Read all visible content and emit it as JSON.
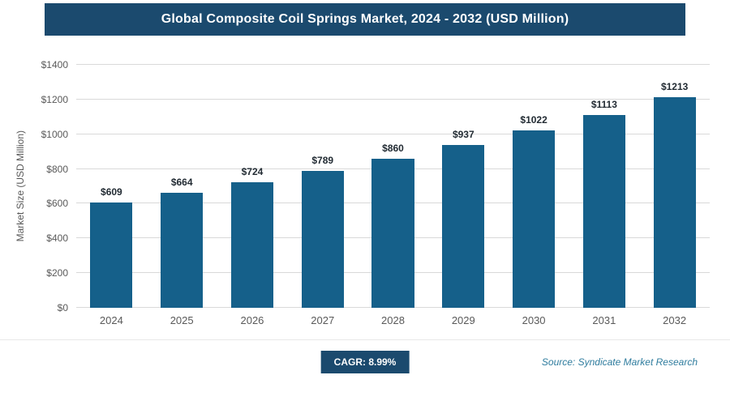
{
  "header": {
    "title": "Global Composite Coil Springs Market, 2024 - 2032 (USD Million)"
  },
  "chart_data": {
    "type": "bar",
    "title": "Global Composite Coil Springs Market, 2024 - 2032 (USD Million)",
    "categories": [
      "2024",
      "2025",
      "2026",
      "2027",
      "2028",
      "2029",
      "2030",
      "2031",
      "2032"
    ],
    "values": [
      609,
      664,
      724,
      789,
      860,
      937,
      1022,
      1113,
      1213
    ],
    "bar_labels": [
      "$609",
      "$664",
      "$724",
      "$789",
      "$860",
      "$937",
      "$1022",
      "$1113",
      "$1213"
    ],
    "xlabel": "",
    "ylabel": "Market Size (USD Million)",
    "ylim": [
      0,
      1400
    ],
    "ytick_step": 200,
    "ytick_labels": [
      "$0",
      "$200",
      "$400",
      "$600",
      "$800",
      "$1000",
      "$1200",
      "$1400"
    ],
    "grid": true,
    "legend": "none"
  },
  "footer": {
    "cagr_label": "CAGR: 8.99%",
    "source": "Source: Syndicate Market Research"
  },
  "colors": {
    "header_bg": "#1b4a6e",
    "bar": "#15608a",
    "badge_bg": "#1b4a6e",
    "grid_line": "#d9d9d9",
    "axis_text": "#595959",
    "bar_label_text": "#222b33",
    "source_text": "#2f7c9e"
  }
}
